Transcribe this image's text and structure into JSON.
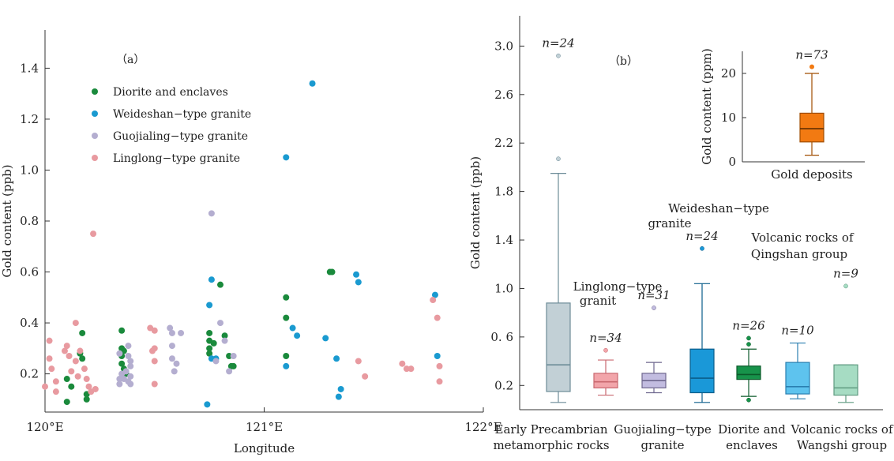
{
  "chart_data": [
    {
      "type": "scatter",
      "panel_label": "（a）",
      "xlabel": "Longitude",
      "ylabel": "Gold content (ppb)",
      "xlim": [
        120,
        122
      ],
      "ylim": [
        0.05,
        1.55
      ],
      "x_ticks": [
        120,
        121,
        122
      ],
      "x_tick_labels": [
        "120°E",
        "121°E",
        "122°E"
      ],
      "y_ticks": [
        0.2,
        0.4,
        0.6,
        0.8,
        1.0,
        1.2,
        1.4
      ],
      "y_tick_labels": [
        "0.2",
        "0.4",
        "0.6",
        "0.8",
        "1.0",
        "1.2",
        "1.4"
      ],
      "series": [
        {
          "name": "Diorite and enclaves",
          "color": "#1a8a3c",
          "points": [
            [
              120.1,
              0.18
            ],
            [
              120.1,
              0.09
            ],
            [
              120.12,
              0.15
            ],
            [
              120.16,
              0.28
            ],
            [
              120.17,
              0.36
            ],
            [
              120.17,
              0.26
            ],
            [
              120.19,
              0.12
            ],
            [
              120.19,
              0.1
            ],
            [
              120.35,
              0.37
            ],
            [
              120.35,
              0.3
            ],
            [
              120.35,
              0.27
            ],
            [
              120.35,
              0.24
            ],
            [
              120.36,
              0.29
            ],
            [
              120.36,
              0.22
            ],
            [
              120.37,
              0.2
            ],
            [
              120.75,
              0.36
            ],
            [
              120.75,
              0.33
            ],
            [
              120.75,
              0.3
            ],
            [
              120.75,
              0.28
            ],
            [
              120.77,
              0.32
            ],
            [
              120.8,
              0.55
            ],
            [
              120.82,
              0.35
            ],
            [
              120.84,
              0.27
            ],
            [
              120.85,
              0.23
            ],
            [
              120.86,
              0.23
            ],
            [
              121.1,
              0.5
            ],
            [
              121.1,
              0.42
            ],
            [
              121.1,
              0.27
            ],
            [
              121.3,
              0.6
            ],
            [
              121.31,
              0.6
            ]
          ]
        },
        {
          "name": "Weideshan-type granite",
          "color": "#1a9ad0",
          "points": [
            [
              120.74,
              0.08
            ],
            [
              120.75,
              0.47
            ],
            [
              120.76,
              0.57
            ],
            [
              120.76,
              0.26
            ],
            [
              120.78,
              0.26
            ],
            [
              121.1,
              1.05
            ],
            [
              121.1,
              0.23
            ],
            [
              121.13,
              0.38
            ],
            [
              121.15,
              0.35
            ],
            [
              121.22,
              1.34
            ],
            [
              121.28,
              0.34
            ],
            [
              121.33,
              0.26
            ],
            [
              121.34,
              0.11
            ],
            [
              121.35,
              0.14
            ],
            [
              121.42,
              0.59
            ],
            [
              121.43,
              0.56
            ],
            [
              121.78,
              0.51
            ],
            [
              121.79,
              0.27
            ]
          ]
        },
        {
          "name": "Guojialing-type granite",
          "color": "#b4aed0",
          "points": [
            [
              120.34,
              0.16
            ],
            [
              120.34,
              0.18
            ],
            [
              120.34,
              0.28
            ],
            [
              120.35,
              0.2
            ],
            [
              120.36,
              0.18
            ],
            [
              120.37,
              0.21
            ],
            [
              120.38,
              0.17
            ],
            [
              120.38,
              0.31
            ],
            [
              120.38,
              0.27
            ],
            [
              120.39,
              0.25
            ],
            [
              120.39,
              0.23
            ],
            [
              120.39,
              0.19
            ],
            [
              120.39,
              0.16
            ],
            [
              120.57,
              0.38
            ],
            [
              120.58,
              0.36
            ],
            [
              120.58,
              0.31
            ],
            [
              120.58,
              0.26
            ],
            [
              120.59,
              0.21
            ],
            [
              120.6,
              0.24
            ],
            [
              120.62,
              0.36
            ],
            [
              120.76,
              0.83
            ],
            [
              120.78,
              0.25
            ],
            [
              120.8,
              0.4
            ],
            [
              120.82,
              0.33
            ],
            [
              120.84,
              0.21
            ],
            [
              120.86,
              0.27
            ]
          ]
        },
        {
          "name": "Linglong-type granite",
          "color": "#e89aa0",
          "points": [
            [
              120.0,
              0.15
            ],
            [
              120.02,
              0.33
            ],
            [
              120.02,
              0.26
            ],
            [
              120.03,
              0.22
            ],
            [
              120.05,
              0.17
            ],
            [
              120.05,
              0.13
            ],
            [
              120.09,
              0.29
            ],
            [
              120.1,
              0.31
            ],
            [
              120.11,
              0.27
            ],
            [
              120.12,
              0.21
            ],
            [
              120.14,
              0.4
            ],
            [
              120.14,
              0.25
            ],
            [
              120.15,
              0.19
            ],
            [
              120.16,
              0.29
            ],
            [
              120.18,
              0.22
            ],
            [
              120.19,
              0.18
            ],
            [
              120.2,
              0.15
            ],
            [
              120.21,
              0.13
            ],
            [
              120.22,
              0.75
            ],
            [
              120.23,
              0.14
            ],
            [
              120.48,
              0.38
            ],
            [
              120.49,
              0.29
            ],
            [
              120.5,
              0.37
            ],
            [
              120.5,
              0.3
            ],
            [
              120.5,
              0.25
            ],
            [
              120.5,
              0.16
            ],
            [
              121.43,
              0.25
            ],
            [
              121.46,
              0.19
            ],
            [
              121.63,
              0.24
            ],
            [
              121.65,
              0.22
            ],
            [
              121.67,
              0.22
            ],
            [
              121.77,
              0.49
            ],
            [
              121.79,
              0.42
            ],
            [
              121.8,
              0.23
            ],
            [
              121.8,
              0.17
            ]
          ]
        }
      ]
    },
    {
      "type": "box",
      "panel_label": "（b）",
      "ylabel": "Gold content (ppb)",
      "ylim": [
        0.0,
        3.25
      ],
      "y_ticks": [
        0.2,
        0.6,
        1.0,
        1.4,
        1.8,
        2.2,
        2.6,
        3.0
      ],
      "y_tick_labels": [
        "0.2",
        "0. 6",
        "1.0",
        "1.4",
        "1.8",
        "2.2",
        "2.6",
        "3.0"
      ],
      "boxes": [
        {
          "category": [
            "Early Precambrian",
            "metamorphic rocks"
          ],
          "n": "n=24",
          "color": "#c2d0d6",
          "edge": "#6d8c98",
          "whisker_low": 0.06,
          "q1": 0.15,
          "median": 0.37,
          "q3": 0.88,
          "whisker_high": 1.95,
          "outliers": [
            2.07,
            2.92
          ]
        },
        {
          "category": [
            "Linglong−type",
            "granit"
          ],
          "n": "n=34",
          "color": "#f2a5aa",
          "edge": "#c9686f",
          "whisker_low": 0.12,
          "q1": 0.18,
          "median": 0.23,
          "q3": 0.3,
          "whisker_high": 0.41,
          "outliers": [
            0.49
          ]
        },
        {
          "category": [
            "Guojialing−type",
            "granite"
          ],
          "n": "n=31",
          "color": "#c2bce0",
          "edge": "#6e678e",
          "whisker_low": 0.14,
          "q1": 0.18,
          "median": 0.24,
          "q3": 0.3,
          "whisker_high": 0.39,
          "outliers": [
            0.84
          ]
        },
        {
          "category": [
            "Weideshan−type",
            "granite"
          ],
          "n": "n=24",
          "color": "#1a98d8",
          "edge": "#0b5d8a",
          "whisker_low": 0.06,
          "q1": 0.14,
          "median": 0.26,
          "q3": 0.5,
          "whisker_high": 1.04,
          "outliers": [
            1.33
          ]
        },
        {
          "category": [
            "Diorite and",
            "enclaves"
          ],
          "n": "n=26",
          "color": "#17934a",
          "edge": "#0b5a2a",
          "whisker_low": 0.11,
          "q1": 0.25,
          "median": 0.29,
          "q3": 0.36,
          "whisker_high": 0.5,
          "outliers": [
            0.54,
            0.59,
            0.08
          ]
        },
        {
          "category": [
            "Volcanic rocks of",
            "Qingshan group"
          ],
          "n": "n=10",
          "color": "#5ec3ee",
          "edge": "#2a7fb0",
          "whisker_low": 0.09,
          "q1": 0.13,
          "median": 0.19,
          "q3": 0.39,
          "whisker_high": 0.55,
          "outliers": []
        },
        {
          "category": [
            "Volcanic rocks of",
            "Wangshi group"
          ],
          "n": "n=9",
          "color": "#a6dcc3",
          "edge": "#5f9a80",
          "whisker_low": 0.06,
          "q1": 0.12,
          "median": 0.18,
          "q3": 0.37,
          "whisker_high": 0.37,
          "outliers": [
            1.02
          ]
        }
      ],
      "x_labels": [
        [
          "Early Precambrian",
          "metamorphic rocks"
        ],
        [
          "Guojialing−type",
          "granite"
        ],
        [
          "Diorite and",
          "enclaves"
        ],
        [
          "Volcanic rocks of",
          "Wangshi group"
        ]
      ],
      "annotations": [
        [
          "Linglong−type",
          "granit"
        ],
        [
          "Weideshan−type",
          "granite"
        ],
        [
          "Volcanic rocks of",
          "Qingshan group"
        ]
      ]
    },
    {
      "type": "box",
      "inset": true,
      "ylabel": "Gold content (ppm)",
      "ylim": [
        0,
        25
      ],
      "y_ticks": [
        0,
        10,
        20
      ],
      "y_tick_labels": [
        "0",
        "10",
        "20"
      ],
      "boxes": [
        {
          "category": "Gold deposits",
          "n": "n=73",
          "color": "#f27a12",
          "edge": "#a04d00",
          "whisker_low": 1.5,
          "q1": 4.5,
          "median": 7.5,
          "q3": 11,
          "whisker_high": 20,
          "outliers": [
            21.5
          ]
        }
      ]
    }
  ]
}
